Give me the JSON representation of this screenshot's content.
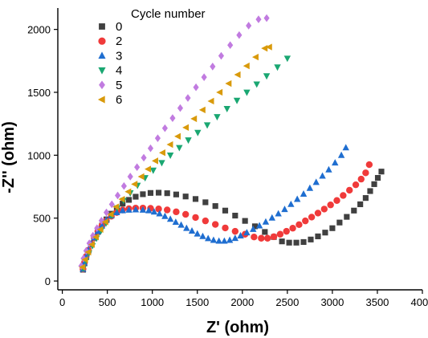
{
  "chart_data": {
    "type": "scatter",
    "xlabel": "Z' (ohm)",
    "ylabel": "-Z'' (ohm)",
    "xlim": [
      -50,
      4000
    ],
    "ylim": [
      -70,
      2170
    ],
    "xticks": [
      0,
      500,
      1000,
      1500,
      2000,
      2500,
      3000,
      3500,
      4000
    ],
    "yticks": [
      0,
      500,
      1000,
      1500,
      2000
    ],
    "legend": {
      "title": "Cycle number",
      "position": "top-left"
    },
    "series": [
      {
        "name": "0",
        "marker": "square",
        "color": "#404040",
        "points": [
          [
            230,
            90
          ],
          [
            245,
            140
          ],
          [
            265,
            190
          ],
          [
            290,
            240
          ],
          [
            320,
            290
          ],
          [
            355,
            340
          ],
          [
            395,
            390
          ],
          [
            440,
            440
          ],
          [
            490,
            490
          ],
          [
            545,
            535
          ],
          [
            605,
            575
          ],
          [
            670,
            615
          ],
          [
            740,
            645
          ],
          [
            815,
            670
          ],
          [
            895,
            690
          ],
          [
            980,
            700
          ],
          [
            1070,
            702
          ],
          [
            1165,
            698
          ],
          [
            1265,
            688
          ],
          [
            1370,
            672
          ],
          [
            1480,
            652
          ],
          [
            1590,
            626
          ],
          [
            1700,
            596
          ],
          [
            1810,
            560
          ],
          [
            1920,
            520
          ],
          [
            2030,
            478
          ],
          [
            2140,
            435
          ],
          [
            2250,
            390
          ],
          [
            2350,
            350
          ],
          [
            2440,
            315
          ],
          [
            2520,
            305
          ],
          [
            2600,
            305
          ],
          [
            2680,
            310
          ],
          [
            2760,
            330
          ],
          [
            2840,
            355
          ],
          [
            2920,
            385
          ],
          [
            3000,
            420
          ],
          [
            3080,
            465
          ],
          [
            3160,
            510
          ],
          [
            3240,
            560
          ],
          [
            3310,
            610
          ],
          [
            3370,
            660
          ],
          [
            3420,
            715
          ],
          [
            3465,
            770
          ],
          [
            3505,
            820
          ],
          [
            3545,
            870
          ]
        ]
      },
      {
        "name": "2",
        "marker": "circle",
        "color": "#f03a3a",
        "points": [
          [
            230,
            95
          ],
          [
            245,
            145
          ],
          [
            265,
            195
          ],
          [
            290,
            245
          ],
          [
            320,
            295
          ],
          [
            355,
            345
          ],
          [
            395,
            395
          ],
          [
            440,
            440
          ],
          [
            490,
            480
          ],
          [
            545,
            515
          ],
          [
            605,
            545
          ],
          [
            670,
            565
          ],
          [
            740,
            575
          ],
          [
            815,
            580
          ],
          [
            895,
            580
          ],
          [
            980,
            578
          ],
          [
            1070,
            573
          ],
          [
            1165,
            565
          ],
          [
            1265,
            550
          ],
          [
            1370,
            530
          ],
          [
            1480,
            505
          ],
          [
            1590,
            478
          ],
          [
            1700,
            450
          ],
          [
            1810,
            422
          ],
          [
            1920,
            395
          ],
          [
            2030,
            372
          ],
          [
            2130,
            350
          ],
          [
            2210,
            340
          ],
          [
            2280,
            340
          ],
          [
            2350,
            352
          ],
          [
            2420,
            372
          ],
          [
            2490,
            395
          ],
          [
            2560,
            420
          ],
          [
            2630,
            448
          ],
          [
            2700,
            478
          ],
          [
            2770,
            508
          ],
          [
            2840,
            540
          ],
          [
            2910,
            572
          ],
          [
            2980,
            605
          ],
          [
            3050,
            640
          ],
          [
            3120,
            680
          ],
          [
            3190,
            722
          ],
          [
            3260,
            765
          ],
          [
            3320,
            810
          ],
          [
            3370,
            860
          ],
          [
            3410,
            925
          ]
        ]
      },
      {
        "name": "3",
        "marker": "triangle-up",
        "color": "#1f6ed0",
        "points": [
          [
            230,
            95
          ],
          [
            245,
            145
          ],
          [
            265,
            195
          ],
          [
            290,
            245
          ],
          [
            320,
            295
          ],
          [
            355,
            345
          ],
          [
            395,
            395
          ],
          [
            440,
            440
          ],
          [
            490,
            485
          ],
          [
            545,
            520
          ],
          [
            605,
            545
          ],
          [
            670,
            560
          ],
          [
            740,
            565
          ],
          [
            815,
            567
          ],
          [
            895,
            565
          ],
          [
            960,
            560
          ],
          [
            1020,
            550
          ],
          [
            1080,
            535
          ],
          [
            1140,
            515
          ],
          [
            1200,
            492
          ],
          [
            1260,
            468
          ],
          [
            1320,
            445
          ],
          [
            1380,
            420
          ],
          [
            1440,
            398
          ],
          [
            1500,
            375
          ],
          [
            1560,
            355
          ],
          [
            1620,
            338
          ],
          [
            1680,
            325
          ],
          [
            1740,
            318
          ],
          [
            1800,
            318
          ],
          [
            1860,
            325
          ],
          [
            1920,
            340
          ],
          [
            1980,
            360
          ],
          [
            2050,
            385
          ],
          [
            2120,
            412
          ],
          [
            2190,
            440
          ],
          [
            2260,
            470
          ],
          [
            2330,
            502
          ],
          [
            2400,
            535
          ],
          [
            2470,
            570
          ],
          [
            2540,
            610
          ],
          [
            2610,
            650
          ],
          [
            2680,
            692
          ],
          [
            2750,
            738
          ],
          [
            2820,
            785
          ],
          [
            2890,
            835
          ],
          [
            2960,
            885
          ],
          [
            3030,
            940
          ],
          [
            3100,
            1000
          ],
          [
            3150,
            1060
          ]
        ]
      },
      {
        "name": "4",
        "marker": "triangle-down",
        "color": "#1aa772",
        "points": [
          [
            230,
            100
          ],
          [
            260,
            160
          ],
          [
            295,
            220
          ],
          [
            335,
            280
          ],
          [
            380,
            340
          ],
          [
            430,
            400
          ],
          [
            485,
            460
          ],
          [
            545,
            520
          ],
          [
            610,
            580
          ],
          [
            680,
            640
          ],
          [
            755,
            700
          ],
          [
            835,
            760
          ],
          [
            920,
            820
          ],
          [
            1010,
            880
          ],
          [
            1105,
            940
          ],
          [
            1200,
            1000
          ],
          [
            1300,
            1060
          ],
          [
            1400,
            1120
          ],
          [
            1505,
            1180
          ],
          [
            1610,
            1240
          ],
          [
            1720,
            1305
          ],
          [
            1830,
            1370
          ],
          [
            1940,
            1435
          ],
          [
            2050,
            1500
          ],
          [
            2160,
            1565
          ],
          [
            2270,
            1630
          ],
          [
            2390,
            1700
          ],
          [
            2500,
            1770
          ]
        ]
      },
      {
        "name": "5",
        "marker": "diamond",
        "color": "#c17be0",
        "points": [
          [
            210,
            120
          ],
          [
            235,
            180
          ],
          [
            265,
            240
          ],
          [
            300,
            300
          ],
          [
            340,
            360
          ],
          [
            385,
            420
          ],
          [
            435,
            480
          ],
          [
            490,
            545
          ],
          [
            550,
            610
          ],
          [
            615,
            680
          ],
          [
            685,
            755
          ],
          [
            755,
            830
          ],
          [
            830,
            905
          ],
          [
            905,
            980
          ],
          [
            980,
            1055
          ],
          [
            1060,
            1135
          ],
          [
            1140,
            1215
          ],
          [
            1225,
            1295
          ],
          [
            1310,
            1375
          ],
          [
            1395,
            1455
          ],
          [
            1485,
            1540
          ],
          [
            1575,
            1620
          ],
          [
            1670,
            1705
          ],
          [
            1765,
            1790
          ],
          [
            1865,
            1875
          ],
          [
            1965,
            1955
          ],
          [
            2070,
            2030
          ],
          [
            2180,
            2080
          ],
          [
            2270,
            2090
          ]
        ]
      },
      {
        "name": "6",
        "marker": "triangle-left",
        "color": "#d99a0b",
        "points": [
          [
            225,
            110
          ],
          [
            255,
            170
          ],
          [
            290,
            230
          ],
          [
            330,
            290
          ],
          [
            375,
            350
          ],
          [
            425,
            410
          ],
          [
            480,
            470
          ],
          [
            540,
            530
          ],
          [
            600,
            590
          ],
          [
            665,
            650
          ],
          [
            735,
            710
          ],
          [
            805,
            770
          ],
          [
            880,
            830
          ],
          [
            955,
            890
          ],
          [
            1035,
            955
          ],
          [
            1115,
            1020
          ],
          [
            1200,
            1085
          ],
          [
            1285,
            1150
          ],
          [
            1375,
            1220
          ],
          [
            1465,
            1290
          ],
          [
            1560,
            1360
          ],
          [
            1655,
            1430
          ],
          [
            1750,
            1500
          ],
          [
            1850,
            1570
          ],
          [
            1950,
            1640
          ],
          [
            2050,
            1710
          ],
          [
            2150,
            1780
          ],
          [
            2250,
            1850
          ],
          [
            2300,
            1860
          ]
        ]
      }
    ]
  }
}
